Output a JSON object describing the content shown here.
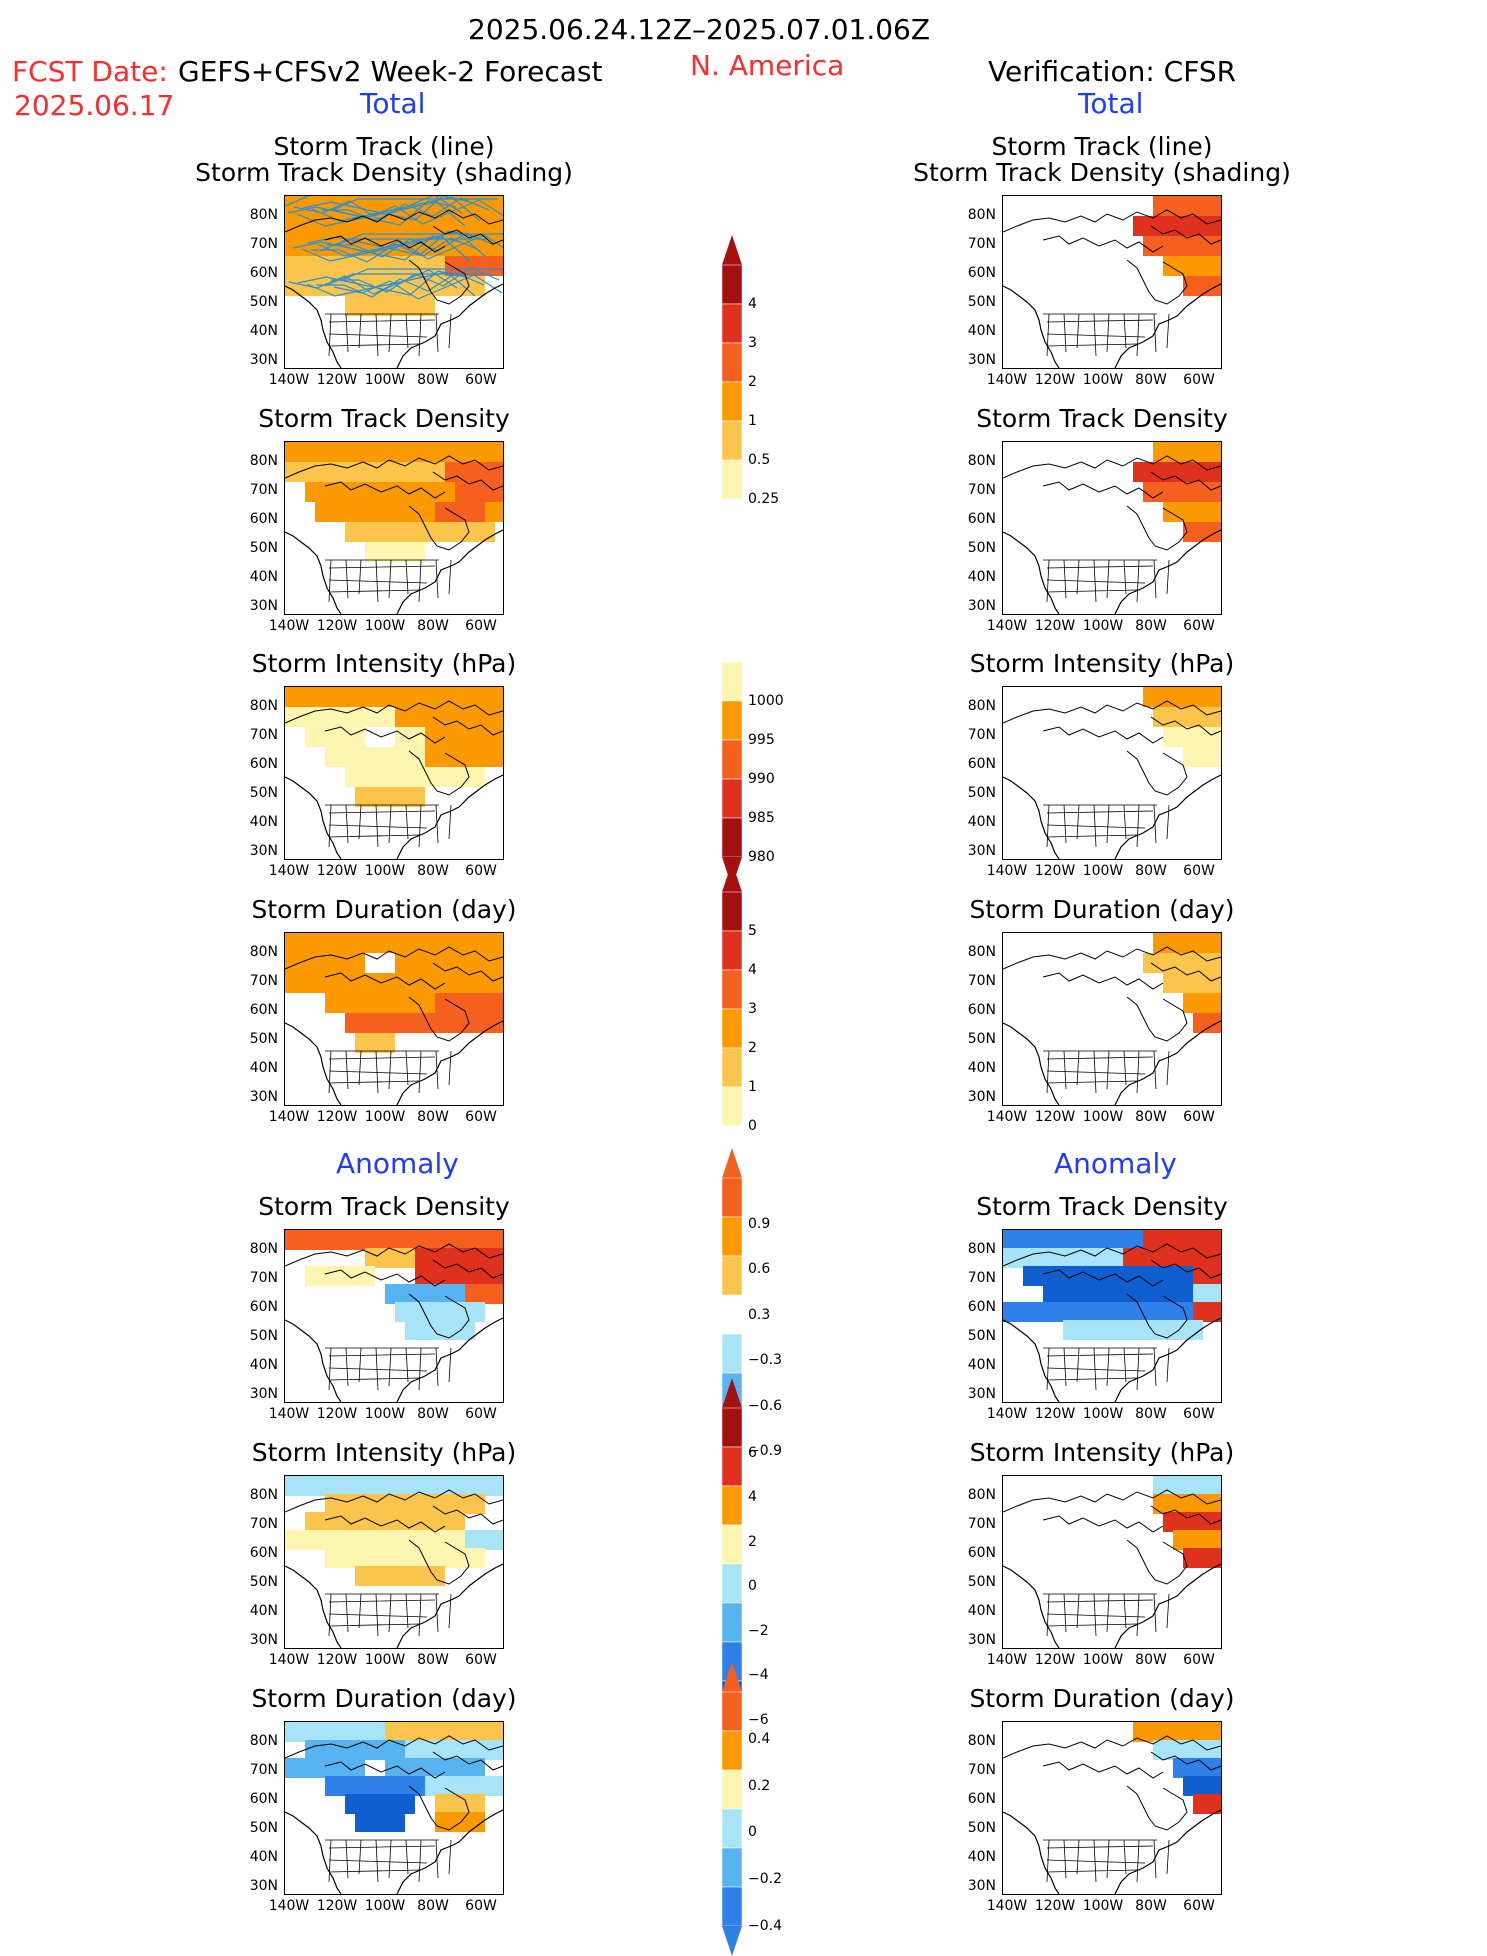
{
  "header": {
    "date_range": "2025.06.24.12Z–2025.07.01.06Z",
    "fcst_date_label": "FCST Date:",
    "fcst_date": "2025.06.17",
    "forecast_name": "GEFS+CFSv2 Week-2 Forecast",
    "region": "N. America",
    "verification": "Verification: CFSR"
  },
  "sections": {
    "total_left": "Total",
    "total_right": "Total",
    "anomaly_left": "Anomaly",
    "anomaly_right": "Anomaly"
  },
  "panel_titles": {
    "track_line": "Storm Track (line)",
    "track_density_shading": "Storm Track Density (shading)",
    "track_density": "Storm Track Density",
    "intensity": "Storm Intensity (hPa)",
    "duration": "Storm Duration (day)"
  },
  "axes": {
    "lat": [
      "80N",
      "70N",
      "60N",
      "50N",
      "40N",
      "30N"
    ],
    "lon": [
      "140W",
      "120W",
      "100W",
      "80W",
      "60W"
    ]
  },
  "colorbars": {
    "density_total": [
      "4",
      "3",
      "2",
      "1",
      "0.5",
      "0.25"
    ],
    "intensity_total": [
      "1000",
      "995",
      "990",
      "985",
      "980"
    ],
    "duration_total": [
      "5",
      "4",
      "3",
      "2",
      "1",
      "0"
    ],
    "density_anom": [
      "0.9",
      "0.6",
      "0.3",
      "−0.3",
      "−0.6",
      "−0.9"
    ],
    "intensity_anom": [
      "6",
      "4",
      "2",
      "0",
      "−2",
      "−4",
      "−6"
    ],
    "duration_anom": [
      "0.4",
      "0.2",
      "0",
      "−0.2",
      "−0.4"
    ]
  },
  "colors": {
    "dark_red": "#a50f0f",
    "red": "#e0301e",
    "orange_red": "#f5601e",
    "orange": "#fa9a00",
    "light_orange": "#fbc44a",
    "pale_yellow": "#fef5b0",
    "light_blue": "#a8e4f8",
    "mid_blue": "#58b4f0",
    "blue": "#2f80e8",
    "dark_blue": "#0f5fd0",
    "track_line": "#2a8fd8"
  }
}
